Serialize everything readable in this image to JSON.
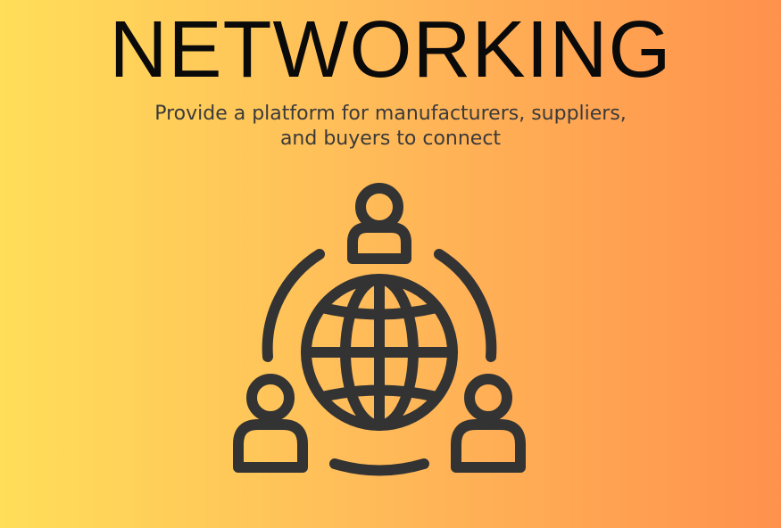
{
  "heading": "NETWORKING",
  "subtitle": {
    "line1": "Provide a platform for manufacturers, suppliers,",
    "line2": "and buyers to connect"
  },
  "illustration": {
    "icon": "network-globe-people-icon",
    "stroke_color": "#333333"
  },
  "background": {
    "gradient_start": "#ffde59",
    "gradient_end": "#ff914d"
  }
}
